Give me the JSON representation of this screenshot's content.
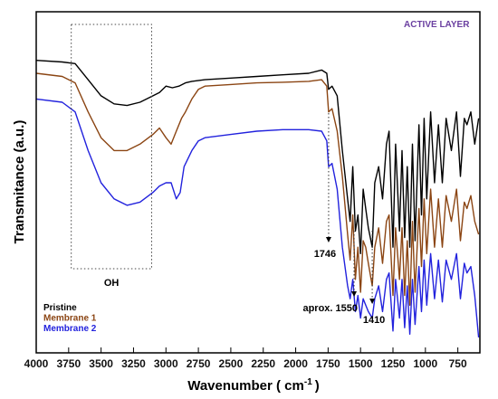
{
  "chart_data": {
    "type": "line",
    "title": "",
    "corner_label": "ACTIVE LAYER",
    "xlabel": "Wavenumber ( cm",
    "xlabel_sup": "-1",
    "xlabel_end": ")",
    "ylabel": "Transmitance (a.u.)",
    "xlim": [
      4000,
      580
    ],
    "x_reversed": true,
    "y_ticks_shown": false,
    "x_ticks": [
      4000,
      3750,
      3500,
      3250,
      3000,
      2750,
      2500,
      2250,
      2000,
      1750,
      1500,
      1250,
      1000,
      750
    ],
    "legend_position": "bottom-left",
    "series": [
      {
        "name": "Pristine",
        "color": "#000000",
        "points": [
          [
            4000,
            0.88
          ],
          [
            3800,
            0.875
          ],
          [
            3700,
            0.87
          ],
          [
            3600,
            0.82
          ],
          [
            3500,
            0.77
          ],
          [
            3400,
            0.745
          ],
          [
            3300,
            0.74
          ],
          [
            3200,
            0.75
          ],
          [
            3100,
            0.77
          ],
          [
            3050,
            0.78
          ],
          [
            3000,
            0.8
          ],
          [
            2950,
            0.795
          ],
          [
            2900,
            0.8
          ],
          [
            2850,
            0.81
          ],
          [
            2800,
            0.815
          ],
          [
            2700,
            0.82
          ],
          [
            2500,
            0.825
          ],
          [
            2300,
            0.83
          ],
          [
            2100,
            0.835
          ],
          [
            1900,
            0.84
          ],
          [
            1800,
            0.85
          ],
          [
            1760,
            0.84
          ],
          [
            1746,
            0.79
          ],
          [
            1720,
            0.8
          ],
          [
            1680,
            0.77
          ],
          [
            1640,
            0.6
          ],
          [
            1600,
            0.45
          ],
          [
            1580,
            0.38
          ],
          [
            1560,
            0.55
          ],
          [
            1540,
            0.35
          ],
          [
            1520,
            0.4
          ],
          [
            1500,
            0.28
          ],
          [
            1480,
            0.48
          ],
          [
            1460,
            0.42
          ],
          [
            1440,
            0.36
          ],
          [
            1410,
            0.3
          ],
          [
            1390,
            0.5
          ],
          [
            1360,
            0.55
          ],
          [
            1330,
            0.45
          ],
          [
            1300,
            0.62
          ],
          [
            1280,
            0.66
          ],
          [
            1250,
            0.3
          ],
          [
            1230,
            0.62
          ],
          [
            1200,
            0.35
          ],
          [
            1180,
            0.6
          ],
          [
            1160,
            0.33
          ],
          [
            1140,
            0.55
          ],
          [
            1120,
            0.3
          ],
          [
            1100,
            0.62
          ],
          [
            1080,
            0.32
          ],
          [
            1050,
            0.68
          ],
          [
            1030,
            0.4
          ],
          [
            1010,
            0.7
          ],
          [
            990,
            0.45
          ],
          [
            960,
            0.72
          ],
          [
            930,
            0.5
          ],
          [
            900,
            0.68
          ],
          [
            870,
            0.5
          ],
          [
            840,
            0.7
          ],
          [
            800,
            0.6
          ],
          [
            760,
            0.72
          ],
          [
            730,
            0.52
          ],
          [
            700,
            0.7
          ],
          [
            680,
            0.68
          ],
          [
            650,
            0.72
          ],
          [
            620,
            0.62
          ],
          [
            590,
            0.7
          ]
        ]
      },
      {
        "name": "Membrane 1",
        "color": "#8b4513",
        "points": [
          [
            4000,
            0.84
          ],
          [
            3800,
            0.83
          ],
          [
            3700,
            0.81
          ],
          [
            3600,
            0.72
          ],
          [
            3500,
            0.64
          ],
          [
            3400,
            0.6
          ],
          [
            3300,
            0.6
          ],
          [
            3200,
            0.62
          ],
          [
            3100,
            0.65
          ],
          [
            3050,
            0.67
          ],
          [
            3000,
            0.64
          ],
          [
            2960,
            0.62
          ],
          [
            2920,
            0.66
          ],
          [
            2880,
            0.7
          ],
          [
            2850,
            0.72
          ],
          [
            2800,
            0.76
          ],
          [
            2750,
            0.79
          ],
          [
            2700,
            0.8
          ],
          [
            2500,
            0.805
          ],
          [
            2300,
            0.81
          ],
          [
            2100,
            0.812
          ],
          [
            1900,
            0.815
          ],
          [
            1800,
            0.82
          ],
          [
            1760,
            0.8
          ],
          [
            1746,
            0.72
          ],
          [
            1720,
            0.73
          ],
          [
            1680,
            0.66
          ],
          [
            1640,
            0.52
          ],
          [
            1600,
            0.34
          ],
          [
            1580,
            0.26
          ],
          [
            1560,
            0.4
          ],
          [
            1540,
            0.2
          ],
          [
            1520,
            0.3
          ],
          [
            1500,
            0.16
          ],
          [
            1480,
            0.32
          ],
          [
            1460,
            0.3
          ],
          [
            1440,
            0.25
          ],
          [
            1410,
            0.18
          ],
          [
            1390,
            0.3
          ],
          [
            1360,
            0.36
          ],
          [
            1330,
            0.25
          ],
          [
            1300,
            0.38
          ],
          [
            1280,
            0.4
          ],
          [
            1250,
            0.15
          ],
          [
            1230,
            0.36
          ],
          [
            1200,
            0.2
          ],
          [
            1180,
            0.36
          ],
          [
            1160,
            0.15
          ],
          [
            1140,
            0.32
          ],
          [
            1120,
            0.12
          ],
          [
            1100,
            0.38
          ],
          [
            1080,
            0.16
          ],
          [
            1050,
            0.42
          ],
          [
            1030,
            0.24
          ],
          [
            1010,
            0.45
          ],
          [
            990,
            0.28
          ],
          [
            960,
            0.48
          ],
          [
            930,
            0.3
          ],
          [
            900,
            0.45
          ],
          [
            870,
            0.3
          ],
          [
            840,
            0.46
          ],
          [
            800,
            0.38
          ],
          [
            760,
            0.48
          ],
          [
            730,
            0.32
          ],
          [
            700,
            0.44
          ],
          [
            680,
            0.42
          ],
          [
            650,
            0.46
          ],
          [
            620,
            0.38
          ],
          [
            590,
            0.34
          ]
        ]
      },
      {
        "name": "Membrane 2",
        "color": "#2222dd",
        "points": [
          [
            4000,
            0.76
          ],
          [
            3800,
            0.75
          ],
          [
            3700,
            0.72
          ],
          [
            3600,
            0.6
          ],
          [
            3500,
            0.5
          ],
          [
            3400,
            0.45
          ],
          [
            3300,
            0.43
          ],
          [
            3200,
            0.44
          ],
          [
            3100,
            0.47
          ],
          [
            3050,
            0.49
          ],
          [
            3000,
            0.5
          ],
          [
            2960,
            0.5
          ],
          [
            2920,
            0.45
          ],
          [
            2890,
            0.47
          ],
          [
            2860,
            0.55
          ],
          [
            2800,
            0.6
          ],
          [
            2750,
            0.63
          ],
          [
            2700,
            0.64
          ],
          [
            2500,
            0.65
          ],
          [
            2300,
            0.66
          ],
          [
            2100,
            0.665
          ],
          [
            1900,
            0.665
          ],
          [
            1800,
            0.66
          ],
          [
            1760,
            0.63
          ],
          [
            1746,
            0.55
          ],
          [
            1720,
            0.56
          ],
          [
            1680,
            0.48
          ],
          [
            1640,
            0.3
          ],
          [
            1600,
            0.18
          ],
          [
            1580,
            0.14
          ],
          [
            1560,
            0.2
          ],
          [
            1540,
            0.1
          ],
          [
            1520,
            0.15
          ],
          [
            1500,
            0.08
          ],
          [
            1480,
            0.14
          ],
          [
            1460,
            0.12
          ],
          [
            1440,
            0.1
          ],
          [
            1410,
            0.08
          ],
          [
            1390,
            0.14
          ],
          [
            1360,
            0.18
          ],
          [
            1330,
            0.1
          ],
          [
            1300,
            0.2
          ],
          [
            1280,
            0.22
          ],
          [
            1250,
            0.04
          ],
          [
            1230,
            0.2
          ],
          [
            1200,
            0.08
          ],
          [
            1180,
            0.2
          ],
          [
            1160,
            0.05
          ],
          [
            1140,
            0.18
          ],
          [
            1120,
            0.03
          ],
          [
            1100,
            0.2
          ],
          [
            1080,
            0.06
          ],
          [
            1050,
            0.24
          ],
          [
            1030,
            0.1
          ],
          [
            1010,
            0.26
          ],
          [
            990,
            0.12
          ],
          [
            960,
            0.28
          ],
          [
            930,
            0.14
          ],
          [
            900,
            0.26
          ],
          [
            870,
            0.13
          ],
          [
            840,
            0.26
          ],
          [
            800,
            0.2
          ],
          [
            760,
            0.28
          ],
          [
            730,
            0.14
          ],
          [
            700,
            0.25
          ],
          [
            680,
            0.22
          ],
          [
            650,
            0.24
          ],
          [
            620,
            0.15
          ],
          [
            590,
            0.02
          ]
        ]
      }
    ],
    "annotations": [
      {
        "label": "OH",
        "type": "box",
        "x_from": 3730,
        "x_to": 3110
      },
      {
        "label": "1746",
        "type": "arrow",
        "x": 1746
      },
      {
        "label": "aprox. 1550",
        "type": "arrow",
        "x": 1550
      },
      {
        "label": "1410",
        "type": "arrow",
        "x": 1410
      }
    ]
  }
}
